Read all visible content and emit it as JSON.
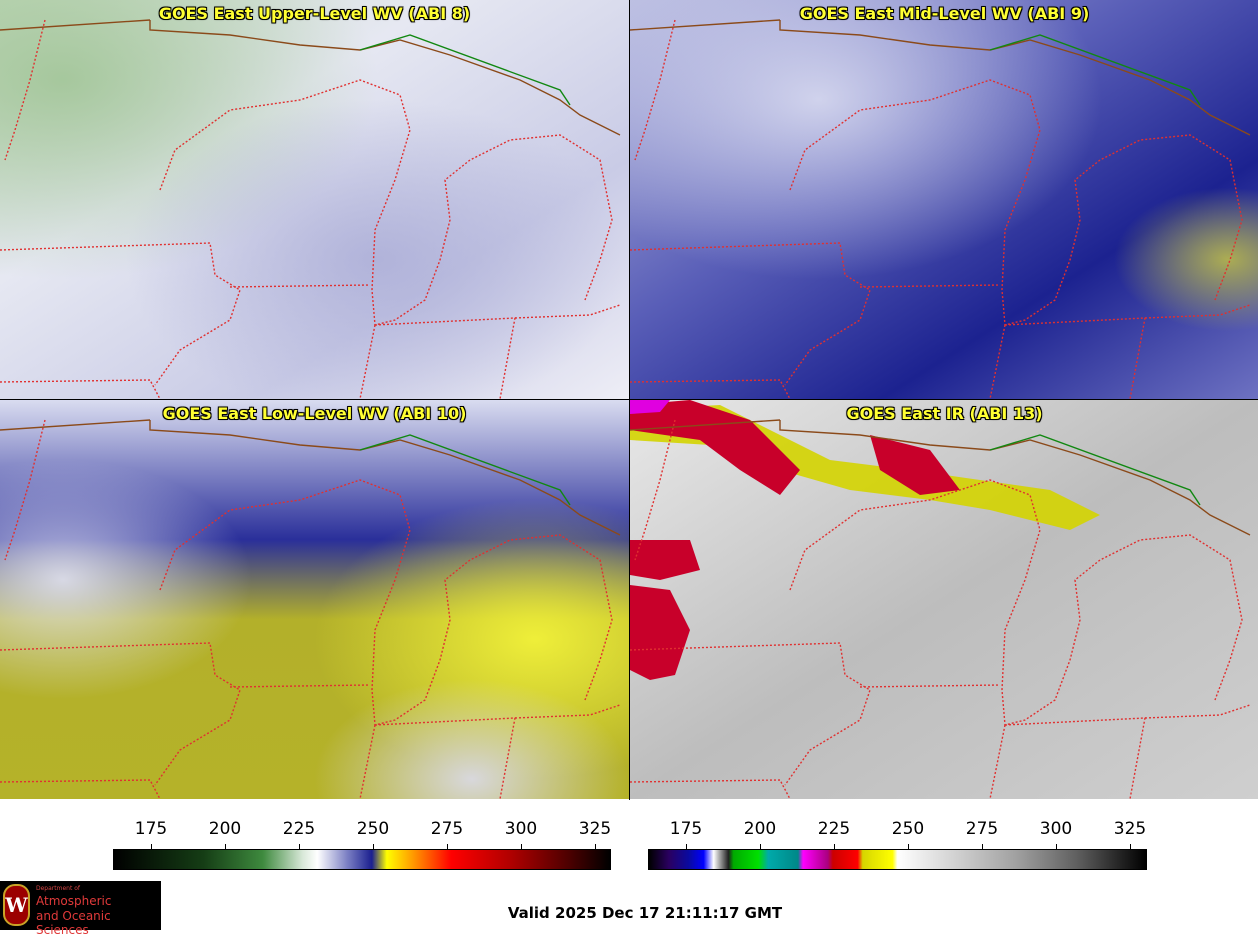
{
  "panels": [
    {
      "id": "upper",
      "title": "GOES East Upper-Level WV (ABI 8)"
    },
    {
      "id": "mid",
      "title": "GOES East Mid-Level WV (ABI 9)"
    },
    {
      "id": "low",
      "title": "GOES East Low-Level WV (ABI 10)"
    },
    {
      "id": "ir",
      "title": "GOES East IR (ABI 13)"
    }
  ],
  "colorbars": {
    "wv": {
      "ticks": [
        "175",
        "200",
        "225",
        "250",
        "275",
        "300",
        "325"
      ]
    },
    "ir": {
      "ticks": [
        "175",
        "200",
        "225",
        "250",
        "275",
        "300",
        "325"
      ]
    }
  },
  "logo": {
    "line1": "Department of",
    "line2": "Atmospheric",
    "line3": "and Oceanic Sciences",
    "seal": "W"
  },
  "valid_time": "Valid 2025 Dec 17 21:11:17 GMT",
  "colors": {
    "border_state": "#e03030",
    "border_country": "#118811",
    "coast": "#8b4a1a",
    "title": "#ffff33"
  }
}
